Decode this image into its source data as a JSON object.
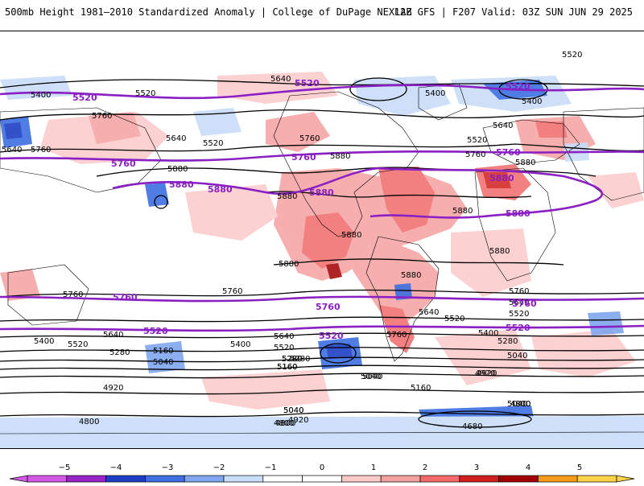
{
  "header": {
    "title_left": "500mb Height 1981–2010 Standardized Anomaly | College of DuPage NEXLAB",
    "title_right": "12Z GFS | F207 Valid: 03Z SUN JUN 29 2025"
  },
  "map": {
    "contour_labels_black": [
      {
        "id": "5520-top-right",
        "text": "5520"
      },
      {
        "id": "5640-top",
        "text": "5640"
      },
      {
        "id": "5520-pac",
        "text": "5520"
      },
      {
        "id": "5400-left",
        "text": "5400"
      },
      {
        "id": "5760-asia",
        "text": "5760"
      },
      {
        "id": "5640-asia",
        "text": "5640"
      },
      {
        "id": "5520-asia",
        "text": "5520"
      },
      {
        "id": "5640-left",
        "text": "5640"
      },
      {
        "id": "5760-left",
        "text": "5760"
      },
      {
        "id": "5880-pac",
        "text": "5880"
      },
      {
        "id": "5880-mid",
        "text": "5880"
      },
      {
        "id": "5760-na",
        "text": "5760"
      },
      {
        "id": "5880-na",
        "text": "5880"
      },
      {
        "id": "5400-eu",
        "text": "5400"
      },
      {
        "id": "5400-eu2",
        "text": "5400"
      },
      {
        "id": "5520-eu",
        "text": "5520"
      },
      {
        "id": "5640-eu",
        "text": "5640"
      },
      {
        "id": "5760-eu",
        "text": "5760"
      },
      {
        "id": "5880-med",
        "text": "5880"
      },
      {
        "id": "5880-atl",
        "text": "5880"
      },
      {
        "id": "5880-afr",
        "text": "5880"
      },
      {
        "id": "5880-sa",
        "text": "5880"
      },
      {
        "id": "5880-sa2",
        "text": "5880"
      },
      {
        "id": "5880-sa3",
        "text": "5880"
      },
      {
        "id": "5760-sp",
        "text": "5760"
      },
      {
        "id": "5640-sp",
        "text": "5640"
      },
      {
        "id": "5520-sp",
        "text": "5520"
      },
      {
        "id": "5400-sp",
        "text": "5400"
      },
      {
        "id": "5280-sp",
        "text": "5280"
      },
      {
        "id": "5160-sp",
        "text": "5160"
      },
      {
        "id": "5040-sp",
        "text": "5040"
      },
      {
        "id": "4920-sp",
        "text": "4920"
      },
      {
        "id": "4800-sp",
        "text": "4800"
      },
      {
        "id": "5760-spac",
        "text": "5760"
      },
      {
        "id": "5640-spac",
        "text": "5640"
      },
      {
        "id": "5520-spac",
        "text": "5520"
      },
      {
        "id": "5400-spac",
        "text": "5400"
      },
      {
        "id": "5280-spac",
        "text": "5280"
      },
      {
        "id": "5160-spac",
        "text": "5160"
      },
      {
        "id": "5040-spac",
        "text": "5040"
      },
      {
        "id": "4920-spac",
        "text": "4920"
      },
      {
        "id": "4800-spac",
        "text": "4800"
      },
      {
        "id": "5640-sa",
        "text": "5640"
      },
      {
        "id": "5520-sa",
        "text": "5520"
      },
      {
        "id": "5760-sa",
        "text": "5760"
      },
      {
        "id": "5400-sio",
        "text": "5400"
      },
      {
        "id": "5280-sio",
        "text": "5280"
      },
      {
        "id": "5040-sio",
        "text": "5040"
      },
      {
        "id": "4920-sio",
        "text": "4920"
      },
      {
        "id": "5160-sio",
        "text": "5160"
      },
      {
        "id": "5040-sio2",
        "text": "5040"
      },
      {
        "id": "5640-sio",
        "text": "5640"
      },
      {
        "id": "5520-sio",
        "text": "5520"
      },
      {
        "id": "5760-sio",
        "text": "5760"
      },
      {
        "id": "5280-sio2",
        "text": "5280"
      },
      {
        "id": "5040-soc",
        "text": "5040"
      },
      {
        "id": "4800-soc",
        "text": "4800"
      },
      {
        "id": "4680-ant",
        "text": "4680"
      },
      {
        "id": "5040-sp2",
        "text": "5040"
      },
      {
        "id": "4920-sp2",
        "text": "4920"
      },
      {
        "id": "4800-sp2",
        "text": "4800"
      },
      {
        "id": "5280-sp2",
        "text": "5280"
      },
      {
        "id": "5160-sp2",
        "text": "5160"
      },
      {
        "id": "5040-sp3",
        "text": "5040"
      },
      {
        "id": "4800-sp3",
        "text": "4800"
      }
    ],
    "contour_labels_purple": [
      {
        "id": "p5520-pac",
        "text": "5520"
      },
      {
        "id": "p5520-top",
        "text": "5520"
      },
      {
        "id": "p5520-eu",
        "text": "5520"
      },
      {
        "id": "p5760-asia",
        "text": "5760"
      },
      {
        "id": "p5760-na",
        "text": "5760"
      },
      {
        "id": "p5760-eu",
        "text": "5760"
      },
      {
        "id": "p5880-pac1",
        "text": "5880"
      },
      {
        "id": "p5880-pac2",
        "text": "5880"
      },
      {
        "id": "p5880-na",
        "text": "5880"
      },
      {
        "id": "p5880-med",
        "text": "5880"
      },
      {
        "id": "p5880-afr",
        "text": "5880"
      },
      {
        "id": "p5760-sp",
        "text": "5760"
      },
      {
        "id": "p5760-sa",
        "text": "5760"
      },
      {
        "id": "p5760-sio",
        "text": "5760"
      },
      {
        "id": "p5520-sp",
        "text": "5520"
      },
      {
        "id": "p5520-sa",
        "text": "5520"
      },
      {
        "id": "p5520-sio",
        "text": "5520"
      }
    ]
  },
  "colorbar": {
    "ticks": [
      "−5",
      "−4",
      "−3",
      "−2",
      "−1",
      "0",
      "1",
      "2",
      "3",
      "4",
      "5"
    ],
    "colors": [
      "#d458e6",
      "#9b24c9",
      "#1e3fc4",
      "#3d6fe0",
      "#7fa6ef",
      "#c9dcf8",
      "#ffffff",
      "#ffffff",
      "#fcc9c9",
      "#f5a0a0",
      "#f26a6a",
      "#d21f1f",
      "#a20000",
      "#f59a1a",
      "#fcd24a"
    ]
  },
  "colors": {
    "height_contour": "#000000",
    "key_contour": "#8a1fc4",
    "positive_anomaly": "#f5a0a0",
    "negative_anomaly": "#7fa6ef"
  }
}
